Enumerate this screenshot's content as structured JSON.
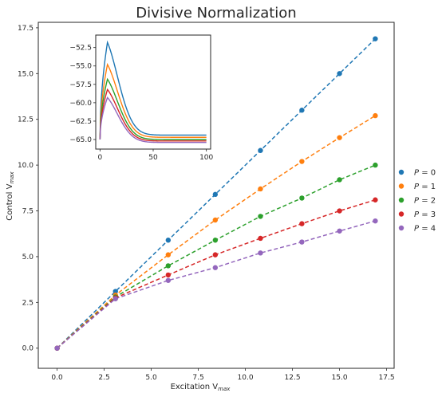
{
  "chart_data": [
    {
      "type": "line",
      "title": "Divisive Normalization",
      "xlabel": "Excitation V",
      "xlabel_sub": "max",
      "ylabel": "Control V",
      "ylabel_sub": "max",
      "xlim": [
        -1.0,
        17.9
      ],
      "ylim": [
        -1.1,
        17.8
      ],
      "xticks": [
        "0.0",
        "2.5",
        "5.0",
        "7.5",
        "10.0",
        "12.5",
        "15.0",
        "17.5"
      ],
      "xtick_values": [
        0,
        2.5,
        5,
        7.5,
        10,
        12.5,
        15,
        17.5
      ],
      "yticks": [
        "0.0",
        "2.5",
        "5.0",
        "7.5",
        "10.0",
        "12.5",
        "15.0",
        "17.5"
      ],
      "ytick_values": [
        0,
        2.5,
        5,
        7.5,
        10,
        12.5,
        15,
        17.5
      ],
      "grid": false,
      "legend_position": "right",
      "markers": true,
      "line_style": "dashed",
      "x": [
        0.0,
        3.1,
        5.9,
        8.4,
        10.8,
        13.0,
        15.0,
        16.9
      ],
      "series": [
        {
          "name": "P = 0",
          "legend_var": "P",
          "legend_val": "= 0",
          "color": "#1f77b4",
          "values": [
            0.0,
            3.1,
            5.9,
            8.4,
            10.8,
            13.0,
            15.0,
            16.9
          ]
        },
        {
          "name": "P = 1",
          "legend_var": "P",
          "legend_val": "= 1",
          "color": "#ff7f0e",
          "values": [
            0.0,
            2.9,
            5.1,
            7.0,
            8.7,
            10.2,
            11.5,
            12.7
          ]
        },
        {
          "name": "P = 2",
          "legend_var": "P",
          "legend_val": "= 2",
          "color": "#2ca02c",
          "values": [
            0.0,
            2.8,
            4.5,
            5.9,
            7.2,
            8.2,
            9.2,
            10.0
          ]
        },
        {
          "name": "P = 3",
          "legend_var": "P",
          "legend_val": "= 3",
          "color": "#d62728",
          "values": [
            0.0,
            2.75,
            4.0,
            5.1,
            6.0,
            6.8,
            7.5,
            8.1
          ]
        },
        {
          "name": "P = 4",
          "legend_var": "P",
          "legend_val": "= 4",
          "color": "#9467bd",
          "values": [
            0.0,
            2.7,
            3.7,
            4.4,
            5.2,
            5.8,
            6.4,
            6.95
          ]
        }
      ]
    },
    {
      "type": "line",
      "title": "",
      "xlim": [
        -4,
        104
      ],
      "ylim": [
        -66.3,
        -50.8
      ],
      "xticks": [
        "0",
        "50",
        "100"
      ],
      "xtick_values": [
        0,
        50,
        100
      ],
      "yticks": [
        "−52.5",
        "−55.0",
        "−57.5",
        "−60.0",
        "−62.5",
        "−65.0"
      ],
      "ytick_values": [
        -52.5,
        -55.0,
        -57.5,
        -60.0,
        -62.5,
        -65.0
      ],
      "grid": false,
      "series": [
        {
          "color": "#1f77b4",
          "peak": -51.8,
          "base": -64.4
        },
        {
          "color": "#ff7f0e",
          "peak": -54.8,
          "base": -64.7
        },
        {
          "color": "#2ca02c",
          "peak": -56.8,
          "base": -65.0
        },
        {
          "color": "#d62728",
          "peak": -58.2,
          "base": -65.2
        },
        {
          "color": "#9467bd",
          "peak": -59.3,
          "base": -65.4
        }
      ],
      "start_value": -65.0,
      "peak_time": 7,
      "x_end": 100
    }
  ]
}
